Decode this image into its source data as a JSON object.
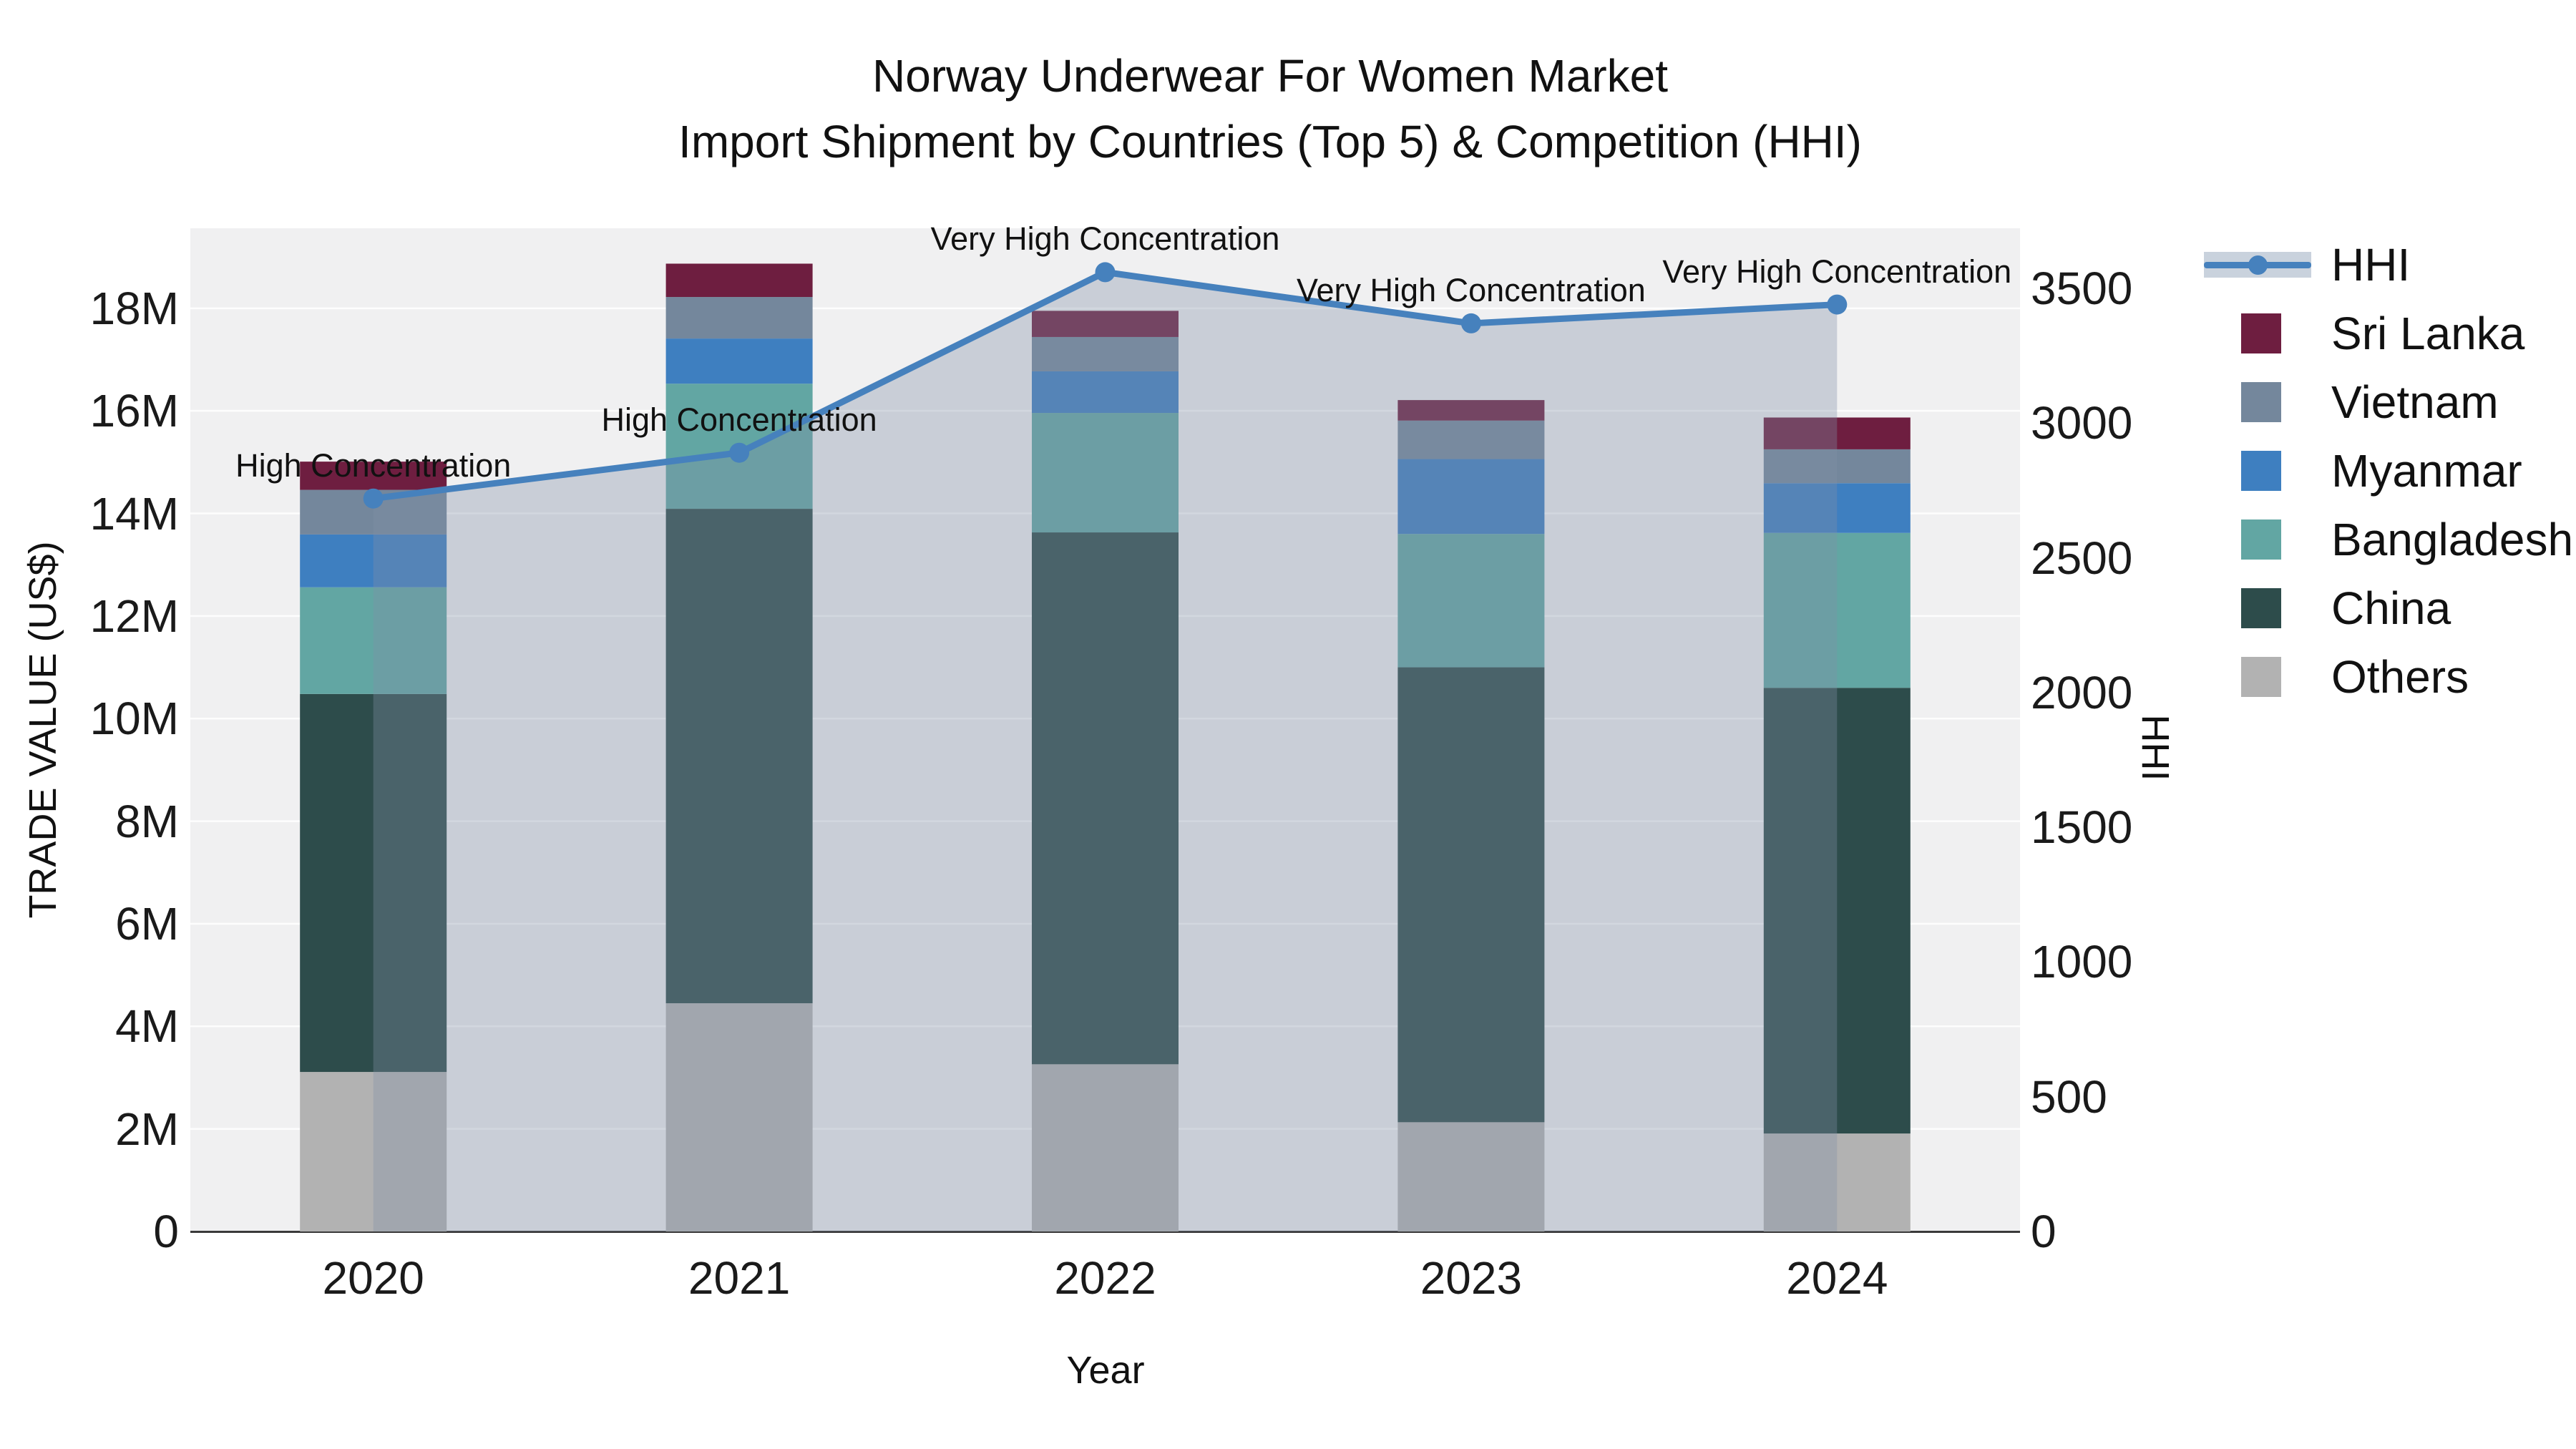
{
  "title": {
    "line1": "Norway Underwear For Women Market",
    "line2": "Import Shipment by Countries (Top 5) & Competition (HHI)"
  },
  "axes": {
    "left": {
      "title": "TRADE VALUE (US$)",
      "tick_labels": [
        "0",
        "2M",
        "4M",
        "6M",
        "8M",
        "10M",
        "12M",
        "14M",
        "16M",
        "18M"
      ],
      "tick_values": [
        0,
        2,
        4,
        6,
        8,
        10,
        12,
        14,
        16,
        18
      ],
      "range": [
        0,
        19.56
      ],
      "unit": "US$ millions"
    },
    "right": {
      "title": "HHI",
      "tick_labels": [
        "0",
        "500",
        "1000",
        "1500",
        "2000",
        "2500",
        "3000",
        "3500"
      ],
      "tick_values": [
        0,
        500,
        1000,
        1500,
        2000,
        2500,
        3000,
        3500
      ],
      "range": [
        0,
        3723
      ]
    },
    "x": {
      "title": "Year",
      "categories": [
        "2020",
        "2021",
        "2022",
        "2023",
        "2024"
      ]
    }
  },
  "legend": {
    "items": [
      {
        "label": "HHI",
        "kind": "line"
      },
      {
        "label": "Sri Lanka",
        "kind": "swatch",
        "color": "#6e1e40"
      },
      {
        "label": "Vietnam",
        "kind": "swatch",
        "color": "#74879c"
      },
      {
        "label": "Myanmar",
        "kind": "swatch",
        "color": "#3e7fc0"
      },
      {
        "label": "Bangladesh",
        "kind": "swatch",
        "color": "#62a6a3"
      },
      {
        "label": "China",
        "kind": "swatch",
        "color": "#2d4c4b"
      },
      {
        "label": "Others",
        "kind": "swatch",
        "color": "#b2b2b2"
      }
    ]
  },
  "colors": {
    "plot_bg": "#f0f0f1",
    "gridline": "#ffffff",
    "hhi_line": "#4681bd",
    "hhi_area_fill": "rgba(129,143,166,0.35)",
    "baseline_spine": "#3a3a3a",
    "text": "#111111"
  },
  "chart_data": {
    "type": "combo: stacked bar + line",
    "categories": [
      "2020",
      "2021",
      "2022",
      "2023",
      "2024"
    ],
    "bar_unit": "US$ millions",
    "stack_order_bottom_to_top": [
      "Others",
      "China",
      "Bangladesh",
      "Myanmar",
      "Vietnam",
      "Sri Lanka"
    ],
    "series": [
      {
        "name": "Others",
        "color": "#b2b2b2",
        "values": [
          3.11,
          4.45,
          3.26,
          2.13,
          1.91
        ]
      },
      {
        "name": "China",
        "color": "#2d4c4b",
        "values": [
          7.37,
          9.64,
          10.37,
          8.87,
          8.69
        ]
      },
      {
        "name": "Bangladesh",
        "color": "#62a6a3",
        "values": [
          2.08,
          2.44,
          2.33,
          2.6,
          3.02
        ]
      },
      {
        "name": "Myanmar",
        "color": "#3e7fc0",
        "values": [
          1.03,
          0.88,
          0.81,
          1.46,
          0.97
        ]
      },
      {
        "name": "Vietnam",
        "color": "#74879c",
        "values": [
          0.87,
          0.81,
          0.67,
          0.75,
          0.66
        ]
      },
      {
        "name": "Sri Lanka",
        "color": "#6e1e40",
        "values": [
          0.55,
          0.65,
          0.51,
          0.4,
          0.62
        ]
      }
    ],
    "bar_totals": [
      15.01,
      18.87,
      17.95,
      16.21,
      15.87
    ],
    "line": {
      "name": "HHI",
      "axis": "right",
      "values": [
        2720,
        2890,
        3560,
        3370,
        3440
      ]
    },
    "annotations": [
      {
        "category": "2020",
        "text": "High Concentration"
      },
      {
        "category": "2021",
        "text": "High Concentration"
      },
      {
        "category": "2022",
        "text": "Very High Concentration"
      },
      {
        "category": "2023",
        "text": "Very High Concentration"
      },
      {
        "category": "2024",
        "text": "Very High Concentration"
      }
    ],
    "layout_hints": {
      "grid": "horizontal white lines every 2M (left axis)",
      "legend_position": "right, outside plot",
      "area_under_line": true,
      "bar_width_fraction_of_slot": 0.4
    }
  }
}
